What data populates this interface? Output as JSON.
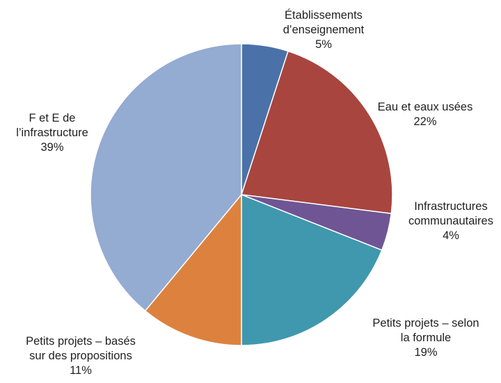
{
  "chart_data": {
    "type": "pie",
    "start_angle_deg": 0,
    "direction": "clockwise",
    "slices": [
      {
        "label_lines": [
          "Établissements",
          "d’enseignement"
        ],
        "value": 5,
        "display": "5%",
        "color": "#4a72a8"
      },
      {
        "label_lines": [
          "Eau et eaux usées"
        ],
        "value": 22,
        "display": "22%",
        "color": "#a8453f"
      },
      {
        "label_lines": [
          "Infrastructures",
          "communautaires"
        ],
        "value": 4,
        "display": "4%",
        "color": "#6f5594"
      },
      {
        "label_lines": [
          "Petits projets – selon",
          "la formule"
        ],
        "value": 19,
        "display": "19%",
        "color": "#3f98ae"
      },
      {
        "label_lines": [
          "Petits projets – basés",
          "sur des propositions"
        ],
        "value": 11,
        "display": "11%",
        "color": "#dc823e"
      },
      {
        "label_lines": [
          "F et E de",
          "l’infrastructure"
        ],
        "value": 39,
        "display": "39%",
        "color": "#94abd2"
      }
    ]
  }
}
